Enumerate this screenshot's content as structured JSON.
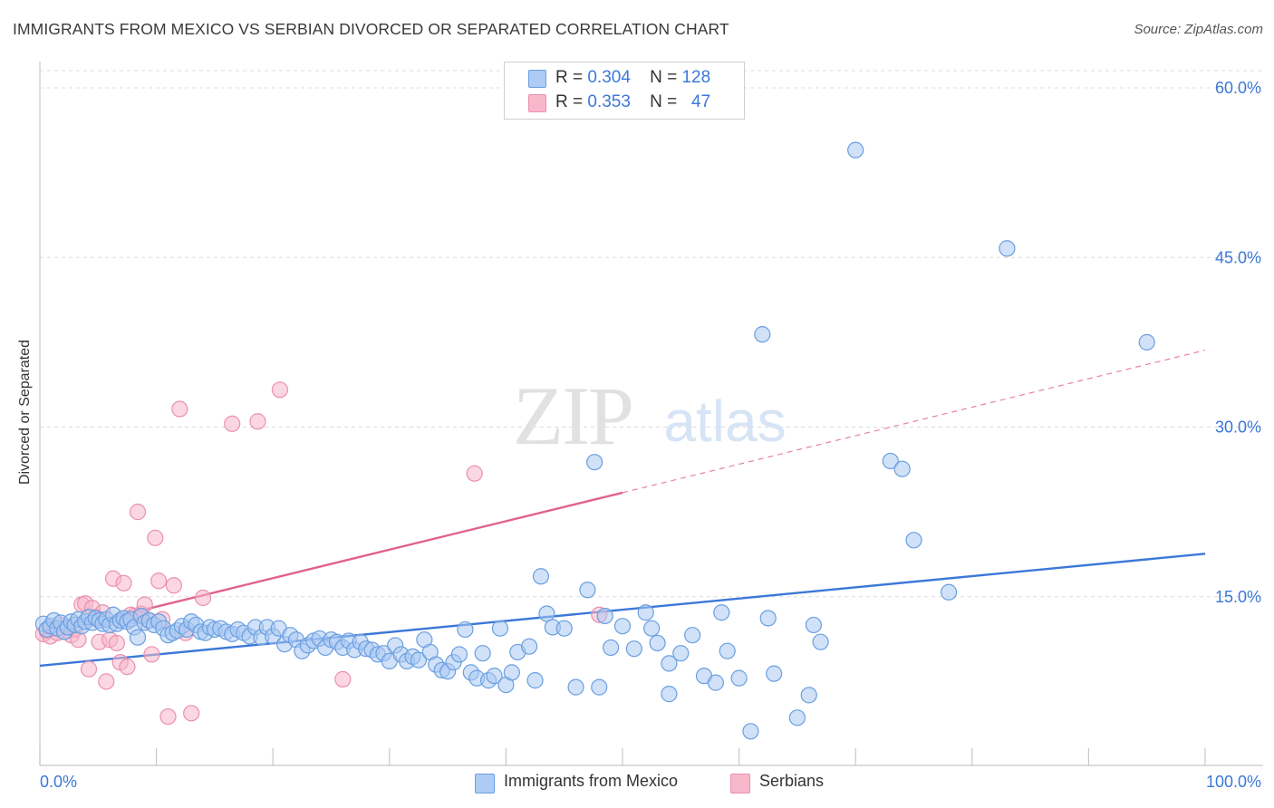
{
  "header": {
    "title": "IMMIGRANTS FROM MEXICO VS SERBIAN DIVORCED OR SEPARATED CORRELATION CHART",
    "source": "Source: ZipAtlas.com"
  },
  "watermark": {
    "zip": "ZIP",
    "atlas": "atlas"
  },
  "legend": {
    "rows": [
      {
        "r_label": "R =",
        "r_value": "0.304",
        "n_label": "N =",
        "n_value": "128",
        "color": "#aecbf5"
      },
      {
        "r_label": "R =",
        "r_value": "0.353",
        "n_label": "N =",
        "n_value": "47",
        "color": "#f7b8cc"
      }
    ]
  },
  "bottom_legend": [
    {
      "label": "Immigrants from Mexico",
      "color": "#aecbf5"
    },
    {
      "label": "Serbians",
      "color": "#f7b8cc"
    }
  ],
  "colors": {
    "blue_fill": "#a9c8f2",
    "blue_stroke": "#6a9fe0",
    "blue_line": "#3b78d8",
    "pink_fill": "#f5b6ca",
    "pink_stroke": "#ec8fae",
    "pink_line": "#e0628f",
    "grid": "#dcdcdc",
    "tick_label": "#3b78d8"
  },
  "chart_data": {
    "type": "scatter",
    "title": "IMMIGRANTS FROM MEXICO VS SERBIAN DIVORCED OR SEPARATED CORRELATION CHART",
    "xlabel": "",
    "ylabel": "Divorced or Separated",
    "xlim": [
      0,
      100
    ],
    "ylim": [
      0,
      60
    ],
    "x_tick_labels": [
      "0.0%",
      "100.0%"
    ],
    "y_ticks": [
      15,
      30,
      45,
      60
    ],
    "y_tick_labels": [
      "15.0%",
      "30.0%",
      "45.0%",
      "60.0%"
    ],
    "grid": true,
    "legend_position": "top-center",
    "series": [
      {
        "name": "Immigrants from Mexico",
        "R": 0.304,
        "N": 128,
        "trend": {
          "x": [
            0,
            100
          ],
          "y": [
            8.9,
            18.8
          ],
          "dashed_from": null
        },
        "points": [
          [
            0.3,
            12.6
          ],
          [
            0.6,
            12.1
          ],
          [
            0.9,
            12.4
          ],
          [
            1.2,
            12.9
          ],
          [
            1.5,
            12.2
          ],
          [
            1.8,
            12.7
          ],
          [
            2.1,
            11.9
          ],
          [
            2.4,
            12.3
          ],
          [
            2.7,
            12.8
          ],
          [
            3.0,
            12.5
          ],
          [
            3.3,
            13.0
          ],
          [
            3.6,
            12.4
          ],
          [
            3.9,
            12.8
          ],
          [
            4.2,
            13.2
          ],
          [
            4.5,
            12.7
          ],
          [
            4.8,
            13.1
          ],
          [
            5.1,
            12.9
          ],
          [
            5.4,
            12.6
          ],
          [
            5.7,
            13.0
          ],
          [
            6.0,
            12.5
          ],
          [
            6.3,
            13.4
          ],
          [
            6.6,
            12.6
          ],
          [
            6.9,
            12.9
          ],
          [
            7.2,
            13.1
          ],
          [
            7.5,
            12.8
          ],
          [
            7.8,
            13.0
          ],
          [
            8.1,
            12.3
          ],
          [
            8.4,
            11.4
          ],
          [
            8.7,
            13.3
          ],
          [
            9.0,
            12.7
          ],
          [
            9.4,
            12.9
          ],
          [
            9.8,
            12.5
          ],
          [
            10.2,
            12.8
          ],
          [
            10.6,
            12.2
          ],
          [
            11.0,
            11.6
          ],
          [
            11.4,
            11.8
          ],
          [
            11.8,
            12.0
          ],
          [
            12.2,
            12.4
          ],
          [
            12.6,
            12.1
          ],
          [
            13.0,
            12.8
          ],
          [
            13.4,
            12.5
          ],
          [
            13.8,
            11.9
          ],
          [
            14.2,
            11.8
          ],
          [
            14.6,
            12.3
          ],
          [
            15.0,
            12.1
          ],
          [
            15.5,
            12.2
          ],
          [
            16.0,
            11.9
          ],
          [
            16.5,
            11.7
          ],
          [
            17.0,
            12.1
          ],
          [
            17.5,
            11.8
          ],
          [
            18.0,
            11.5
          ],
          [
            18.5,
            12.3
          ],
          [
            19.0,
            11.4
          ],
          [
            19.5,
            12.3
          ],
          [
            20.0,
            11.5
          ],
          [
            20.5,
            12.2
          ],
          [
            21.0,
            10.8
          ],
          [
            21.5,
            11.6
          ],
          [
            22.0,
            11.2
          ],
          [
            22.5,
            10.2
          ],
          [
            23.0,
            10.7
          ],
          [
            23.5,
            11.1
          ],
          [
            24.0,
            11.3
          ],
          [
            24.5,
            10.5
          ],
          [
            25.0,
            11.2
          ],
          [
            25.5,
            11.0
          ],
          [
            26.0,
            10.5
          ],
          [
            26.5,
            11.1
          ],
          [
            27.0,
            10.3
          ],
          [
            27.5,
            11.0
          ],
          [
            28.0,
            10.4
          ],
          [
            28.5,
            10.3
          ],
          [
            29.0,
            9.9
          ],
          [
            29.5,
            10.0
          ],
          [
            30.0,
            9.3
          ],
          [
            30.5,
            10.7
          ],
          [
            31.0,
            9.9
          ],
          [
            31.5,
            9.3
          ],
          [
            32.0,
            9.7
          ],
          [
            32.5,
            9.4
          ],
          [
            33.0,
            11.2
          ],
          [
            33.5,
            10.1
          ],
          [
            34.0,
            9.0
          ],
          [
            34.5,
            8.5
          ],
          [
            35.0,
            8.4
          ],
          [
            35.5,
            9.2
          ],
          [
            36.0,
            9.9
          ],
          [
            36.5,
            12.1
          ],
          [
            37.0,
            8.3
          ],
          [
            37.5,
            7.8
          ],
          [
            38.0,
            10.0
          ],
          [
            38.5,
            7.6
          ],
          [
            39.0,
            8.0
          ],
          [
            39.5,
            12.2
          ],
          [
            40.0,
            7.2
          ],
          [
            40.5,
            8.3
          ],
          [
            41.0,
            10.1
          ],
          [
            42.0,
            10.6
          ],
          [
            42.5,
            7.6
          ],
          [
            43.0,
            16.8
          ],
          [
            43.5,
            13.5
          ],
          [
            44.0,
            12.3
          ],
          [
            45.0,
            12.2
          ],
          [
            46.0,
            7.0
          ],
          [
            47.0,
            15.6
          ],
          [
            48.0,
            7.0
          ],
          [
            49.0,
            10.5
          ],
          [
            50.0,
            12.4
          ],
          [
            51.0,
            10.4
          ],
          [
            52.0,
            13.6
          ],
          [
            52.5,
            12.2
          ],
          [
            53.0,
            10.9
          ],
          [
            54.0,
            9.1
          ],
          [
            55.0,
            10.0
          ],
          [
            56.0,
            11.6
          ],
          [
            57.0,
            8.0
          ],
          [
            58.0,
            7.4
          ],
          [
            59.0,
            10.2
          ],
          [
            60.0,
            7.8
          ],
          [
            61.0,
            3.1
          ],
          [
            63.0,
            8.2
          ],
          [
            65.0,
            4.3
          ],
          [
            66.0,
            6.3
          ],
          [
            67.0,
            11.0
          ],
          [
            70.0,
            54.5
          ],
          [
            73.0,
            27.0
          ],
          [
            74.0,
            26.3
          ],
          [
            75.0,
            20.0
          ]
        ],
        "outliers_high": [
          [
            47.6,
            26.9
          ],
          [
            62.0,
            38.2
          ],
          [
            83.0,
            45.8
          ],
          [
            95.0,
            37.5
          ],
          [
            78.0,
            15.4
          ],
          [
            62.5,
            13.1
          ],
          [
            66.4,
            12.5
          ],
          [
            48.5,
            13.3
          ],
          [
            58.5,
            13.6
          ],
          [
            54.0,
            6.4
          ]
        ]
      },
      {
        "name": "Serbians",
        "R": 0.353,
        "N": 47,
        "trend": {
          "x": [
            0,
            100
          ],
          "y": [
            11.6,
            36.8
          ],
          "dashed_from": 50
        },
        "points": [
          [
            0.3,
            11.7
          ],
          [
            0.6,
            12.0
          ],
          [
            0.9,
            11.5
          ],
          [
            1.2,
            12.2
          ],
          [
            1.5,
            11.8
          ],
          [
            1.8,
            12.5
          ],
          [
            2.1,
            11.9
          ],
          [
            2.4,
            12.3
          ],
          [
            2.7,
            11.6
          ],
          [
            3.0,
            12.1
          ],
          [
            3.3,
            11.2
          ],
          [
            3.6,
            14.3
          ],
          [
            3.9,
            14.4
          ],
          [
            4.2,
            8.6
          ],
          [
            4.5,
            14.0
          ],
          [
            4.8,
            13.2
          ],
          [
            5.1,
            11.0
          ],
          [
            5.4,
            13.6
          ],
          [
            5.7,
            7.5
          ],
          [
            6.0,
            11.2
          ],
          [
            6.3,
            16.6
          ],
          [
            6.6,
            10.9
          ],
          [
            6.9,
            9.2
          ],
          [
            7.2,
            16.2
          ],
          [
            7.5,
            8.8
          ],
          [
            7.8,
            13.4
          ],
          [
            8.1,
            13.3
          ],
          [
            8.4,
            22.5
          ],
          [
            8.7,
            13.5
          ],
          [
            9.0,
            14.3
          ],
          [
            9.3,
            12.9
          ],
          [
            9.6,
            9.9
          ],
          [
            9.9,
            20.2
          ],
          [
            10.2,
            16.4
          ],
          [
            10.5,
            13.0
          ],
          [
            11.0,
            4.4
          ],
          [
            11.5,
            16.0
          ],
          [
            12.0,
            31.6
          ],
          [
            12.5,
            11.8
          ],
          [
            13.0,
            4.7
          ],
          [
            14.0,
            14.9
          ],
          [
            16.5,
            30.3
          ],
          [
            18.7,
            30.5
          ],
          [
            20.6,
            33.3
          ],
          [
            26.0,
            7.7
          ],
          [
            37.3,
            25.9
          ],
          [
            48.0,
            13.4
          ]
        ]
      }
    ]
  }
}
